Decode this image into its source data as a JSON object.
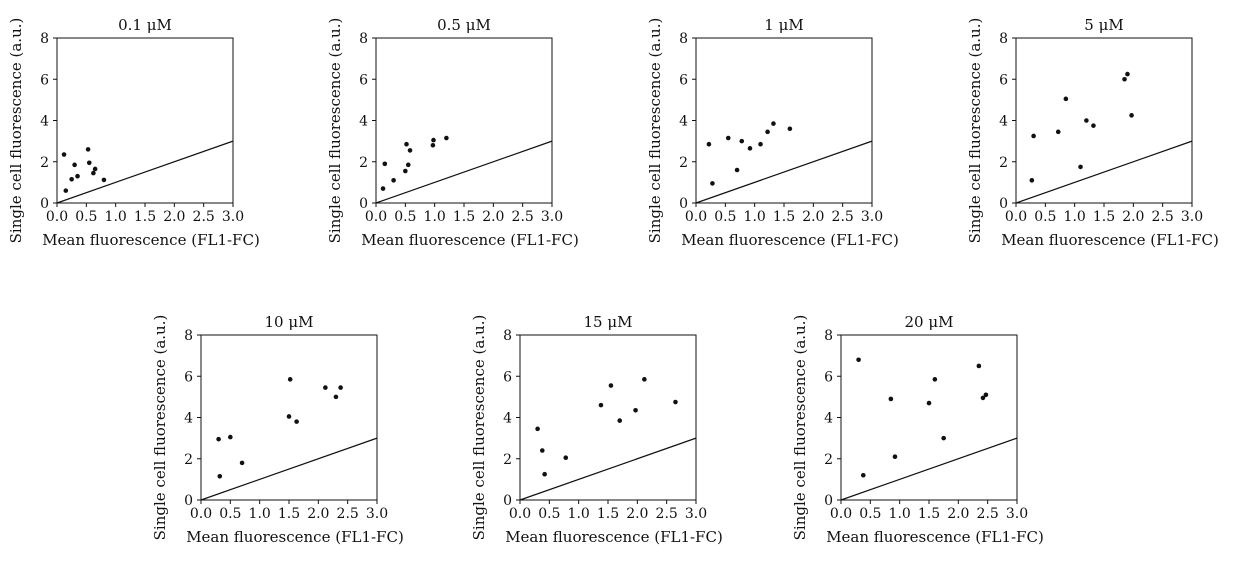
{
  "chart_data": [
    {
      "type": "scatter",
      "title": "0.1 μM",
      "xlabel": "Mean fluorescence (FL1-FC)",
      "ylabel": "Single cell fluorescence (a.u.)",
      "xlim": [
        0,
        3.0
      ],
      "ylim": [
        0,
        8
      ],
      "xticks": [
        "0.0",
        "0.5",
        "1.0",
        "1.5",
        "2.0",
        "2.5",
        "3.0"
      ],
      "yticks": [
        "0",
        "2",
        "4",
        "6",
        "8"
      ],
      "reference_line": {
        "slope": 1,
        "intercept": 0
      },
      "points": [
        {
          "x": 0.12,
          "y": 2.35
        },
        {
          "x": 0.15,
          "y": 0.6
        },
        {
          "x": 0.25,
          "y": 1.15
        },
        {
          "x": 0.3,
          "y": 1.85
        },
        {
          "x": 0.35,
          "y": 1.3
        },
        {
          "x": 0.53,
          "y": 2.6
        },
        {
          "x": 0.55,
          "y": 1.95
        },
        {
          "x": 0.62,
          "y": 1.45
        },
        {
          "x": 0.65,
          "y": 1.65
        },
        {
          "x": 0.8,
          "y": 1.12
        }
      ]
    },
    {
      "type": "scatter",
      "title": "0.5 μM",
      "xlabel": "Mean fluorescence (FL1-FC)",
      "ylabel": "Single cell fluorescence (a.u.)",
      "xlim": [
        0,
        3.0
      ],
      "ylim": [
        0,
        8
      ],
      "xticks": [
        "0.0",
        "0.5",
        "1.0",
        "1.5",
        "2.0",
        "2.5",
        "3.0"
      ],
      "yticks": [
        "0",
        "2",
        "4",
        "6",
        "8"
      ],
      "reference_line": {
        "slope": 1,
        "intercept": 0
      },
      "points": [
        {
          "x": 0.12,
          "y": 0.7
        },
        {
          "x": 0.15,
          "y": 1.9
        },
        {
          "x": 0.3,
          "y": 1.1
        },
        {
          "x": 0.5,
          "y": 1.55
        },
        {
          "x": 0.52,
          "y": 2.85
        },
        {
          "x": 0.55,
          "y": 1.85
        },
        {
          "x": 0.58,
          "y": 2.55
        },
        {
          "x": 0.97,
          "y": 2.8
        },
        {
          "x": 0.98,
          "y": 3.05
        },
        {
          "x": 1.2,
          "y": 3.15
        }
      ]
    },
    {
      "type": "scatter",
      "title": "1 μM",
      "xlabel": "Mean fluorescence (FL1-FC)",
      "ylabel": "Single cell fluorescence (a.u.)",
      "xlim": [
        0,
        3.0
      ],
      "ylim": [
        0,
        8
      ],
      "xticks": [
        "0.0",
        "0.5",
        "1.0",
        "1.5",
        "2.0",
        "2.5",
        "3.0"
      ],
      "yticks": [
        "0",
        "2",
        "4",
        "6",
        "8"
      ],
      "reference_line": {
        "slope": 1,
        "intercept": 0
      },
      "points": [
        {
          "x": 0.22,
          "y": 2.85
        },
        {
          "x": 0.28,
          "y": 0.95
        },
        {
          "x": 0.55,
          "y": 3.15
        },
        {
          "x": 0.7,
          "y": 1.6
        },
        {
          "x": 0.78,
          "y": 3.0
        },
        {
          "x": 0.92,
          "y": 2.65
        },
        {
          "x": 1.1,
          "y": 2.85
        },
        {
          "x": 1.22,
          "y": 3.45
        },
        {
          "x": 1.32,
          "y": 3.85
        },
        {
          "x": 1.6,
          "y": 3.6
        }
      ]
    },
    {
      "type": "scatter",
      "title": "5 μM",
      "xlabel": "Mean fluorescence (FL1-FC)",
      "ylabel": "Single cell fluorescence (a.u.)",
      "xlim": [
        0,
        3.0
      ],
      "ylim": [
        0,
        8
      ],
      "xticks": [
        "0.0",
        "0.5",
        "1.0",
        "1.5",
        "2.0",
        "2.5",
        "3.0"
      ],
      "yticks": [
        "0",
        "2",
        "4",
        "6",
        "8"
      ],
      "reference_line": {
        "slope": 1,
        "intercept": 0
      },
      "points": [
        {
          "x": 0.27,
          "y": 1.1
        },
        {
          "x": 0.3,
          "y": 3.25
        },
        {
          "x": 0.72,
          "y": 3.45
        },
        {
          "x": 0.85,
          "y": 5.05
        },
        {
          "x": 1.1,
          "y": 1.75
        },
        {
          "x": 1.2,
          "y": 4.0
        },
        {
          "x": 1.32,
          "y": 3.75
        },
        {
          "x": 1.85,
          "y": 6.0
        },
        {
          "x": 1.9,
          "y": 6.25
        },
        {
          "x": 1.97,
          "y": 4.25
        }
      ]
    },
    {
      "type": "scatter",
      "title": "10 μM",
      "xlabel": "Mean fluorescence (FL1-FC)",
      "ylabel": "Single cell fluorescence (a.u.)",
      "xlim": [
        0,
        3.0
      ],
      "ylim": [
        0,
        8
      ],
      "xticks": [
        "0.0",
        "0.5",
        "1.0",
        "1.5",
        "2.0",
        "2.5",
        "3.0"
      ],
      "yticks": [
        "0",
        "2",
        "4",
        "6",
        "8"
      ],
      "reference_line": {
        "slope": 1,
        "intercept": 0
      },
      "points": [
        {
          "x": 0.3,
          "y": 2.95
        },
        {
          "x": 0.32,
          "y": 1.15
        },
        {
          "x": 0.5,
          "y": 3.05
        },
        {
          "x": 0.7,
          "y": 1.8
        },
        {
          "x": 1.5,
          "y": 4.05
        },
        {
          "x": 1.52,
          "y": 5.85
        },
        {
          "x": 1.63,
          "y": 3.8
        },
        {
          "x": 2.12,
          "y": 5.45
        },
        {
          "x": 2.3,
          "y": 5.0
        },
        {
          "x": 2.38,
          "y": 5.45
        }
      ]
    },
    {
      "type": "scatter",
      "title": "15 μM",
      "xlabel": "Mean fluorescence (FL1-FC)",
      "ylabel": "Single cell fluorescence (a.u.)",
      "xlim": [
        0,
        3.0
      ],
      "ylim": [
        0,
        8
      ],
      "xticks": [
        "0.0",
        "0.5",
        "1.0",
        "1.5",
        "2.0",
        "2.5",
        "3.0"
      ],
      "yticks": [
        "0",
        "2",
        "4",
        "6",
        "8"
      ],
      "reference_line": {
        "slope": 1,
        "intercept": 0
      },
      "points": [
        {
          "x": 0.3,
          "y": 3.45
        },
        {
          "x": 0.38,
          "y": 2.4
        },
        {
          "x": 0.42,
          "y": 1.25
        },
        {
          "x": 0.78,
          "y": 2.05
        },
        {
          "x": 1.38,
          "y": 4.6
        },
        {
          "x": 1.55,
          "y": 5.55
        },
        {
          "x": 1.7,
          "y": 3.85
        },
        {
          "x": 1.97,
          "y": 4.35
        },
        {
          "x": 2.12,
          "y": 5.85
        },
        {
          "x": 2.65,
          "y": 4.75
        }
      ]
    },
    {
      "type": "scatter",
      "title": "20 μM",
      "xlabel": "Mean fluorescence (FL1-FC)",
      "ylabel": "Single cell fluorescence (a.u.)",
      "xlim": [
        0,
        3.0
      ],
      "ylim": [
        0,
        8
      ],
      "xticks": [
        "0.0",
        "0.5",
        "1.0",
        "1.5",
        "2.0",
        "2.5",
        "3.0"
      ],
      "yticks": [
        "0",
        "2",
        "4",
        "6",
        "8"
      ],
      "reference_line": {
        "slope": 1,
        "intercept": 0
      },
      "points": [
        {
          "x": 0.3,
          "y": 6.8
        },
        {
          "x": 0.38,
          "y": 1.2
        },
        {
          "x": 0.85,
          "y": 4.9
        },
        {
          "x": 0.92,
          "y": 2.1
        },
        {
          "x": 1.5,
          "y": 4.7
        },
        {
          "x": 1.6,
          "y": 5.85
        },
        {
          "x": 1.75,
          "y": 3.0
        },
        {
          "x": 2.35,
          "y": 6.5
        },
        {
          "x": 2.42,
          "y": 4.95
        },
        {
          "x": 2.47,
          "y": 5.1
        }
      ]
    }
  ]
}
